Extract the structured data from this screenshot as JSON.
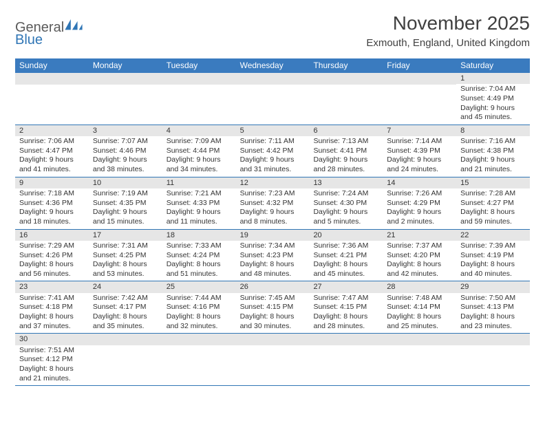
{
  "logo": {
    "text1": "Genera",
    "text2": "l",
    "text3": "Blue",
    "color_gray": "#5a5a5a",
    "color_blue": "#2f75b5"
  },
  "title": "November 2025",
  "location": "Exmouth, England, United Kingdom",
  "header_bg": "#3a7bbf",
  "border_color": "#2f75b5",
  "daynum_bg": "#e6e6e6",
  "days_header": [
    "Sunday",
    "Monday",
    "Tuesday",
    "Wednesday",
    "Thursday",
    "Friday",
    "Saturday"
  ],
  "weeks": [
    [
      null,
      null,
      null,
      null,
      null,
      null,
      {
        "n": "1",
        "sunrise": "Sunrise: 7:04 AM",
        "sunset": "Sunset: 4:49 PM",
        "daylight1": "Daylight: 9 hours",
        "daylight2": "and 45 minutes."
      }
    ],
    [
      {
        "n": "2",
        "sunrise": "Sunrise: 7:06 AM",
        "sunset": "Sunset: 4:47 PM",
        "daylight1": "Daylight: 9 hours",
        "daylight2": "and 41 minutes."
      },
      {
        "n": "3",
        "sunrise": "Sunrise: 7:07 AM",
        "sunset": "Sunset: 4:46 PM",
        "daylight1": "Daylight: 9 hours",
        "daylight2": "and 38 minutes."
      },
      {
        "n": "4",
        "sunrise": "Sunrise: 7:09 AM",
        "sunset": "Sunset: 4:44 PM",
        "daylight1": "Daylight: 9 hours",
        "daylight2": "and 34 minutes."
      },
      {
        "n": "5",
        "sunrise": "Sunrise: 7:11 AM",
        "sunset": "Sunset: 4:42 PM",
        "daylight1": "Daylight: 9 hours",
        "daylight2": "and 31 minutes."
      },
      {
        "n": "6",
        "sunrise": "Sunrise: 7:13 AM",
        "sunset": "Sunset: 4:41 PM",
        "daylight1": "Daylight: 9 hours",
        "daylight2": "and 28 minutes."
      },
      {
        "n": "7",
        "sunrise": "Sunrise: 7:14 AM",
        "sunset": "Sunset: 4:39 PM",
        "daylight1": "Daylight: 9 hours",
        "daylight2": "and 24 minutes."
      },
      {
        "n": "8",
        "sunrise": "Sunrise: 7:16 AM",
        "sunset": "Sunset: 4:38 PM",
        "daylight1": "Daylight: 9 hours",
        "daylight2": "and 21 minutes."
      }
    ],
    [
      {
        "n": "9",
        "sunrise": "Sunrise: 7:18 AM",
        "sunset": "Sunset: 4:36 PM",
        "daylight1": "Daylight: 9 hours",
        "daylight2": "and 18 minutes."
      },
      {
        "n": "10",
        "sunrise": "Sunrise: 7:19 AM",
        "sunset": "Sunset: 4:35 PM",
        "daylight1": "Daylight: 9 hours",
        "daylight2": "and 15 minutes."
      },
      {
        "n": "11",
        "sunrise": "Sunrise: 7:21 AM",
        "sunset": "Sunset: 4:33 PM",
        "daylight1": "Daylight: 9 hours",
        "daylight2": "and 11 minutes."
      },
      {
        "n": "12",
        "sunrise": "Sunrise: 7:23 AM",
        "sunset": "Sunset: 4:32 PM",
        "daylight1": "Daylight: 9 hours",
        "daylight2": "and 8 minutes."
      },
      {
        "n": "13",
        "sunrise": "Sunrise: 7:24 AM",
        "sunset": "Sunset: 4:30 PM",
        "daylight1": "Daylight: 9 hours",
        "daylight2": "and 5 minutes."
      },
      {
        "n": "14",
        "sunrise": "Sunrise: 7:26 AM",
        "sunset": "Sunset: 4:29 PM",
        "daylight1": "Daylight: 9 hours",
        "daylight2": "and 2 minutes."
      },
      {
        "n": "15",
        "sunrise": "Sunrise: 7:28 AM",
        "sunset": "Sunset: 4:27 PM",
        "daylight1": "Daylight: 8 hours",
        "daylight2": "and 59 minutes."
      }
    ],
    [
      {
        "n": "16",
        "sunrise": "Sunrise: 7:29 AM",
        "sunset": "Sunset: 4:26 PM",
        "daylight1": "Daylight: 8 hours",
        "daylight2": "and 56 minutes."
      },
      {
        "n": "17",
        "sunrise": "Sunrise: 7:31 AM",
        "sunset": "Sunset: 4:25 PM",
        "daylight1": "Daylight: 8 hours",
        "daylight2": "and 53 minutes."
      },
      {
        "n": "18",
        "sunrise": "Sunrise: 7:33 AM",
        "sunset": "Sunset: 4:24 PM",
        "daylight1": "Daylight: 8 hours",
        "daylight2": "and 51 minutes."
      },
      {
        "n": "19",
        "sunrise": "Sunrise: 7:34 AM",
        "sunset": "Sunset: 4:23 PM",
        "daylight1": "Daylight: 8 hours",
        "daylight2": "and 48 minutes."
      },
      {
        "n": "20",
        "sunrise": "Sunrise: 7:36 AM",
        "sunset": "Sunset: 4:21 PM",
        "daylight1": "Daylight: 8 hours",
        "daylight2": "and 45 minutes."
      },
      {
        "n": "21",
        "sunrise": "Sunrise: 7:37 AM",
        "sunset": "Sunset: 4:20 PM",
        "daylight1": "Daylight: 8 hours",
        "daylight2": "and 42 minutes."
      },
      {
        "n": "22",
        "sunrise": "Sunrise: 7:39 AM",
        "sunset": "Sunset: 4:19 PM",
        "daylight1": "Daylight: 8 hours",
        "daylight2": "and 40 minutes."
      }
    ],
    [
      {
        "n": "23",
        "sunrise": "Sunrise: 7:41 AM",
        "sunset": "Sunset: 4:18 PM",
        "daylight1": "Daylight: 8 hours",
        "daylight2": "and 37 minutes."
      },
      {
        "n": "24",
        "sunrise": "Sunrise: 7:42 AM",
        "sunset": "Sunset: 4:17 PM",
        "daylight1": "Daylight: 8 hours",
        "daylight2": "and 35 minutes."
      },
      {
        "n": "25",
        "sunrise": "Sunrise: 7:44 AM",
        "sunset": "Sunset: 4:16 PM",
        "daylight1": "Daylight: 8 hours",
        "daylight2": "and 32 minutes."
      },
      {
        "n": "26",
        "sunrise": "Sunrise: 7:45 AM",
        "sunset": "Sunset: 4:15 PM",
        "daylight1": "Daylight: 8 hours",
        "daylight2": "and 30 minutes."
      },
      {
        "n": "27",
        "sunrise": "Sunrise: 7:47 AM",
        "sunset": "Sunset: 4:15 PM",
        "daylight1": "Daylight: 8 hours",
        "daylight2": "and 28 minutes."
      },
      {
        "n": "28",
        "sunrise": "Sunrise: 7:48 AM",
        "sunset": "Sunset: 4:14 PM",
        "daylight1": "Daylight: 8 hours",
        "daylight2": "and 25 minutes."
      },
      {
        "n": "29",
        "sunrise": "Sunrise: 7:50 AM",
        "sunset": "Sunset: 4:13 PM",
        "daylight1": "Daylight: 8 hours",
        "daylight2": "and 23 minutes."
      }
    ],
    [
      {
        "n": "30",
        "sunrise": "Sunrise: 7:51 AM",
        "sunset": "Sunset: 4:12 PM",
        "daylight1": "Daylight: 8 hours",
        "daylight2": "and 21 minutes."
      },
      null,
      null,
      null,
      null,
      null,
      null
    ]
  ]
}
